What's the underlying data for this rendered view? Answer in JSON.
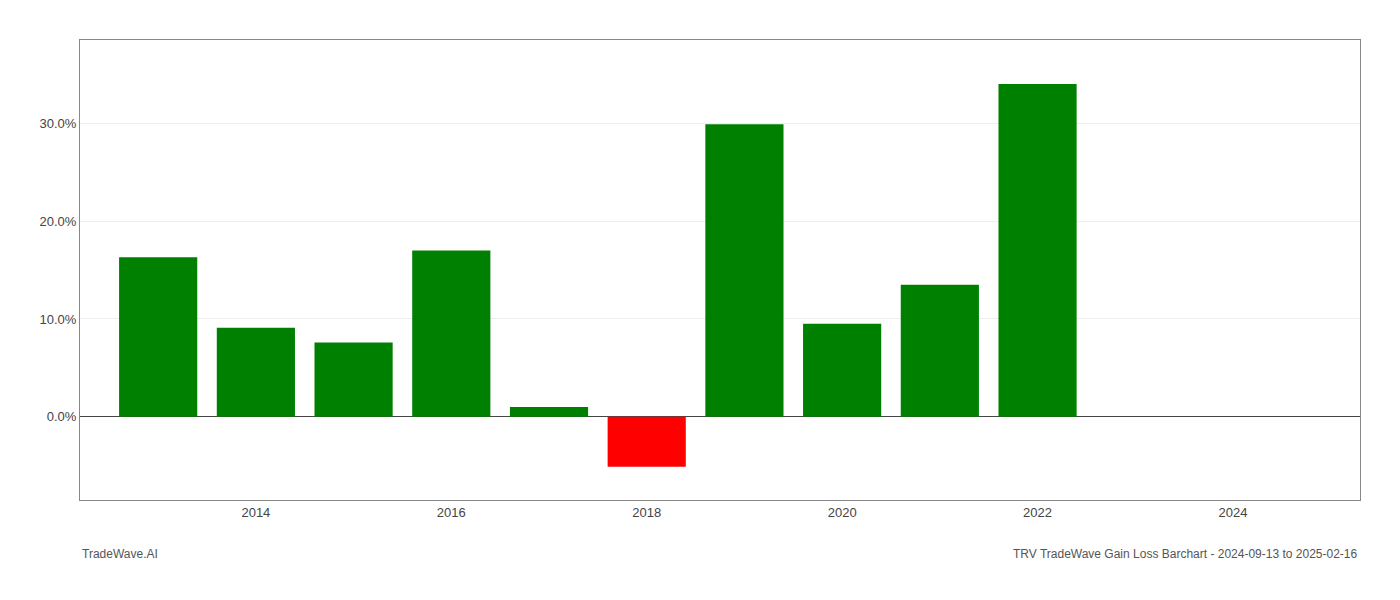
{
  "chart_data": {
    "type": "bar",
    "x": [
      2013,
      2014,
      2015,
      2016,
      2017,
      2018,
      2019,
      2020,
      2021,
      2022,
      2023
    ],
    "values": [
      0.163,
      0.091,
      0.076,
      0.17,
      0.01,
      -0.051,
      0.299,
      0.095,
      0.135,
      0.34,
      0.0
    ],
    "colors": [
      "#008000",
      "#008000",
      "#008000",
      "#008000",
      "#008000",
      "#ff0000",
      "#008000",
      "#008000",
      "#008000",
      "#008000",
      "#008000"
    ],
    "annotations": [
      "TradeWave.AI",
      "TRV TradeWave Gain Loss Barchart - 2024-09-13 to 2025-02-16"
    ],
    "xlim": [
      2012.2,
      2025.3
    ],
    "xticks": [
      2014,
      2016,
      2018,
      2020,
      2022,
      2024
    ],
    "ylim": [
      -0.085,
      0.385
    ],
    "yticks": [
      {
        "value": 0.0,
        "label": "0.0%"
      },
      {
        "value": 0.1,
        "label": "10.0%"
      },
      {
        "value": 0.2,
        "label": "20.0%"
      },
      {
        "value": 0.3,
        "label": "30.0%"
      }
    ],
    "grid": true
  }
}
